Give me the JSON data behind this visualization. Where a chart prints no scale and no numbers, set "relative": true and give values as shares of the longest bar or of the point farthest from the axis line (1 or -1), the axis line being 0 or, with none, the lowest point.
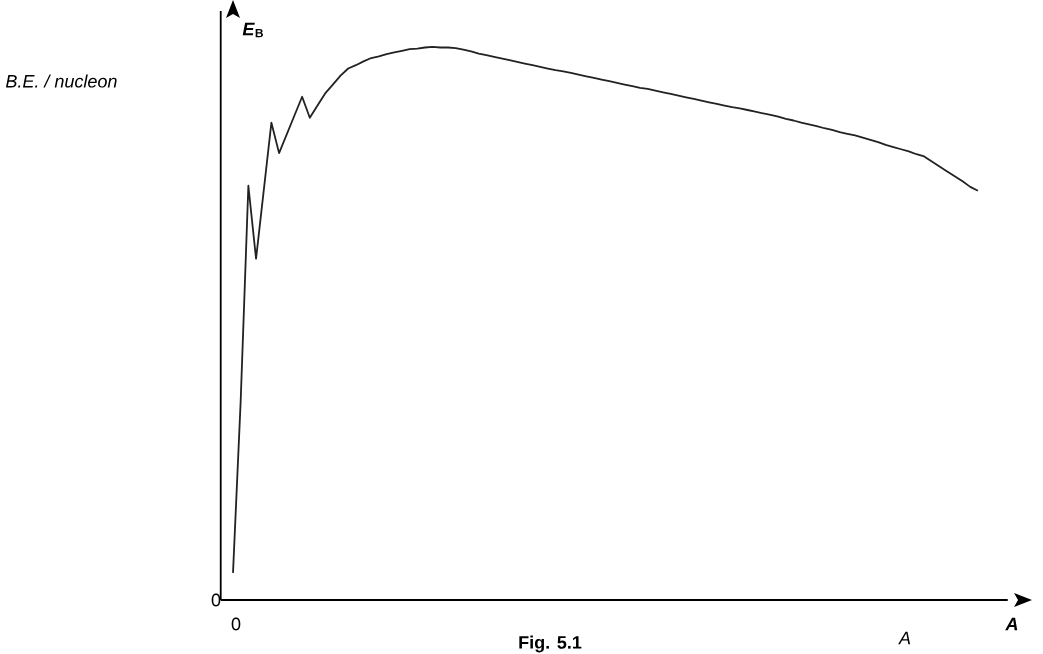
{
  "chart_data": {
    "type": "line",
    "relative": true,
    "ylabel": "*E*$_{B}$",
    "xlabel": "A",
    "annotations": [
      "B.E. / nucleon",
      "0",
      "0",
      "A",
      "Fig. 5.1"
    ],
    "categories": [
      null,
      null,
      null,
      null,
      null,
      null,
      null,
      null,
      null,
      null,
      null,
      null,
      null,
      null,
      null,
      null,
      null,
      null,
      null,
      null,
      null,
      null,
      null,
      null,
      null,
      null,
      null,
      null,
      null,
      null,
      null,
      null,
      null,
      null,
      null,
      null,
      null,
      null,
      null,
      null,
      null,
      null,
      null,
      null,
      null,
      null,
      null,
      null,
      null,
      null,
      null,
      null,
      null,
      null,
      null,
      null,
      null,
      null,
      null,
      null,
      null,
      null,
      null,
      null,
      null,
      null,
      null,
      null,
      null,
      null,
      null,
      null,
      null,
      null,
      null,
      null,
      null,
      null,
      null,
      null,
      null,
      null,
      null,
      null,
      null,
      null,
      null,
      null,
      null,
      null,
      null,
      null,
      null,
      null,
      null,
      null,
      null,
      null
    ],
    "series": [
      {
        "color": "#222222",
        "values": [
          0.049,
          0.36,
          0.749,
          0.617,
          0.74,
          0.863,
          0.808,
          0.842,
          0.876,
          0.91,
          0.872,
          0.894,
          0.916,
          0.932,
          0.948,
          0.961,
          0.967,
          0.974,
          0.98,
          0.983,
          0.987,
          0.99,
          0.993,
          0.996,
          0.997,
          0.999,
          1,
          0.999,
          0.999,
          0.998,
          0.995,
          0.992,
          0.988,
          0.985,
          0.982,
          0.979,
          0.976,
          0.973,
          0.97,
          0.967,
          0.964,
          0.961,
          0.958,
          0.956,
          0.953,
          0.95,
          0.947,
          0.944,
          0.941,
          0.938,
          0.935,
          0.932,
          0.929,
          0.926,
          0.924,
          0.921,
          0.918,
          0.915,
          0.912,
          0.909,
          0.906,
          0.903,
          0.9,
          0.897,
          0.894,
          0.891,
          0.889,
          0.886,
          0.883,
          0.88,
          0.877,
          0.874,
          0.87,
          0.867,
          0.863,
          0.86,
          0.857,
          0.853,
          0.85,
          0.846,
          0.843,
          0.84,
          0.836,
          0.832,
          0.828,
          0.823,
          0.819,
          0.815,
          0.811,
          0.806,
          0.802,
          0.793,
          0.784,
          0.775,
          0.766,
          0.757,
          0.747,
          0.74
        ]
      }
    ],
    "marker": "none",
    "line_style": "solid"
  }
}
